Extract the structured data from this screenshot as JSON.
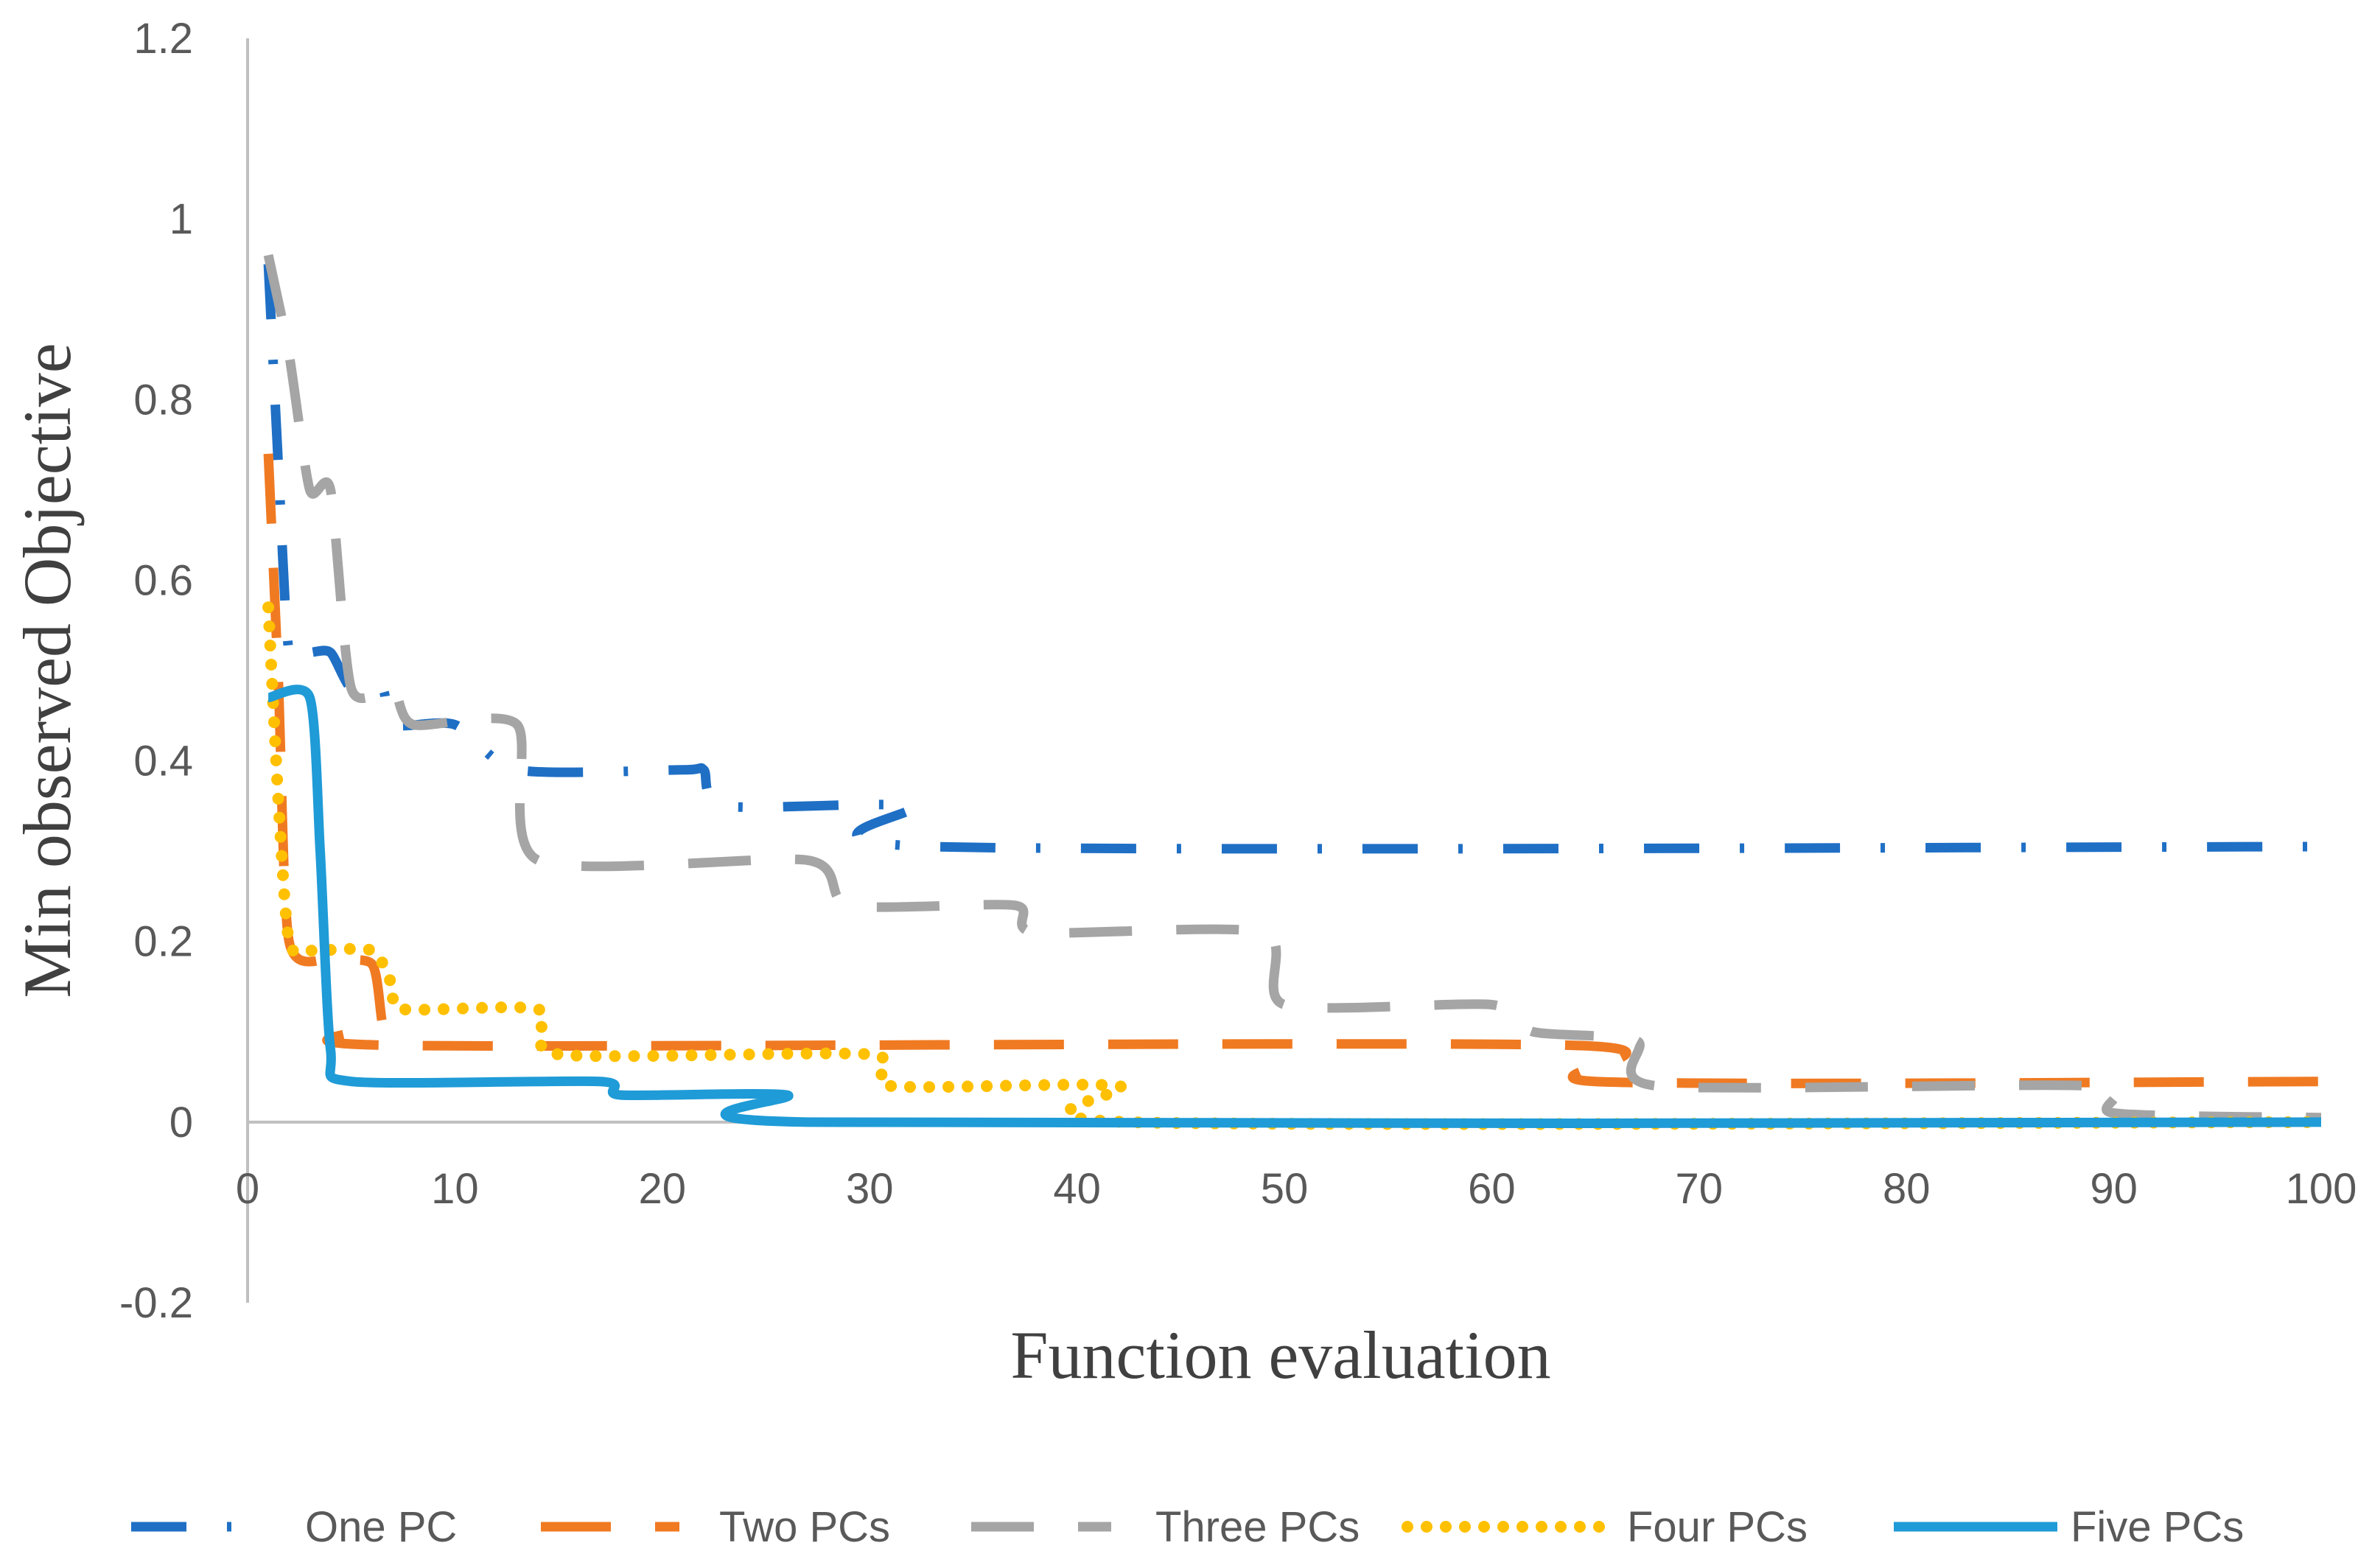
{
  "chart_data": {
    "type": "line",
    "title": "",
    "xlabel": "Function evaluation",
    "ylabel": "Min observed Objective",
    "xlim": [
      0,
      100
    ],
    "ylim": [
      -0.2,
      1.2
    ],
    "xticks": [
      0,
      10,
      20,
      30,
      40,
      50,
      60,
      70,
      80,
      90,
      100
    ],
    "yticks": [
      -0.2,
      0,
      0.2,
      0.4,
      0.6,
      0.8,
      1,
      1.2
    ],
    "ytick_labels": [
      "-0.2",
      "0",
      "0.2",
      "0.4",
      "0.6",
      "0.8",
      "1",
      "1.2"
    ],
    "xtick_labels": [
      "0",
      "10",
      "20",
      "30",
      "40",
      "50",
      "60",
      "70",
      "80",
      "90",
      "100"
    ],
    "legend_position": "bottom",
    "grid": false,
    "series": [
      {
        "name": "One PC",
        "color": "#1f6fc5",
        "style": "dashdot",
        "points": [
          [
            1,
            0.95
          ],
          [
            1.5,
            0.72
          ],
          [
            2,
            0.52
          ],
          [
            3,
            0.52
          ],
          [
            4,
            0.52
          ],
          [
            5,
            0.48
          ],
          [
            6.5,
            0.48
          ],
          [
            7,
            0.44
          ],
          [
            10,
            0.44
          ],
          [
            13,
            0.39
          ],
          [
            21,
            0.39
          ],
          [
            22,
            0.39
          ],
          [
            23,
            0.35
          ],
          [
            32,
            0.35
          ],
          [
            33,
            0.305
          ],
          [
            100,
            0.305
          ]
        ]
      },
      {
        "name": "Two PCs",
        "color": "#f07a22",
        "style": "longdash",
        "points": [
          [
            1,
            0.74
          ],
          [
            1.5,
            0.48
          ],
          [
            2,
            0.2
          ],
          [
            4,
            0.18
          ],
          [
            6,
            0.175
          ],
          [
            6.5,
            0.11
          ],
          [
            7,
            0.085
          ],
          [
            64,
            0.085
          ],
          [
            65,
            0.045
          ],
          [
            100,
            0.045
          ]
        ]
      },
      {
        "name": "Three PCs",
        "color": "#a5a5a5",
        "style": "dash",
        "points": [
          [
            1,
            0.96
          ],
          [
            2,
            0.85
          ],
          [
            3,
            0.7
          ],
          [
            4,
            0.7
          ],
          [
            5,
            0.48
          ],
          [
            7,
            0.48
          ],
          [
            8,
            0.44
          ],
          [
            13,
            0.44
          ],
          [
            14,
            0.29
          ],
          [
            27,
            0.29
          ],
          [
            29,
            0.24
          ],
          [
            37,
            0.24
          ],
          [
            38,
            0.21
          ],
          [
            49,
            0.21
          ],
          [
            50,
            0.13
          ],
          [
            60,
            0.13
          ],
          [
            62,
            0.1
          ],
          [
            67,
            0.09
          ],
          [
            68,
            0.04
          ],
          [
            89,
            0.04
          ],
          [
            90,
            0.01
          ],
          [
            100,
            0.005
          ]
        ]
      },
      {
        "name": "Four PCs",
        "color": "#ffc000",
        "style": "dot",
        "points": [
          [
            1,
            0.57
          ],
          [
            1.5,
            0.35
          ],
          [
            2,
            0.2
          ],
          [
            3,
            0.19
          ],
          [
            6,
            0.19
          ],
          [
            7,
            0.15
          ],
          [
            7.5,
            0.125
          ],
          [
            14,
            0.125
          ],
          [
            15,
            0.075
          ],
          [
            30,
            0.075
          ],
          [
            31,
            0.04
          ],
          [
            42,
            0.04
          ],
          [
            42.5,
            0.0
          ],
          [
            100,
            0.0
          ]
        ]
      },
      {
        "name": "Five PCs",
        "color": "#1f9bd7",
        "style": "solid",
        "points": [
          [
            1,
            0.47
          ],
          [
            3,
            0.47
          ],
          [
            3.5,
            0.3
          ],
          [
            4,
            0.08
          ],
          [
            5,
            0.045
          ],
          [
            17,
            0.045
          ],
          [
            18,
            0.03
          ],
          [
            26,
            0.03
          ],
          [
            27,
            0.0
          ],
          [
            100,
            0.0
          ]
        ]
      }
    ]
  }
}
